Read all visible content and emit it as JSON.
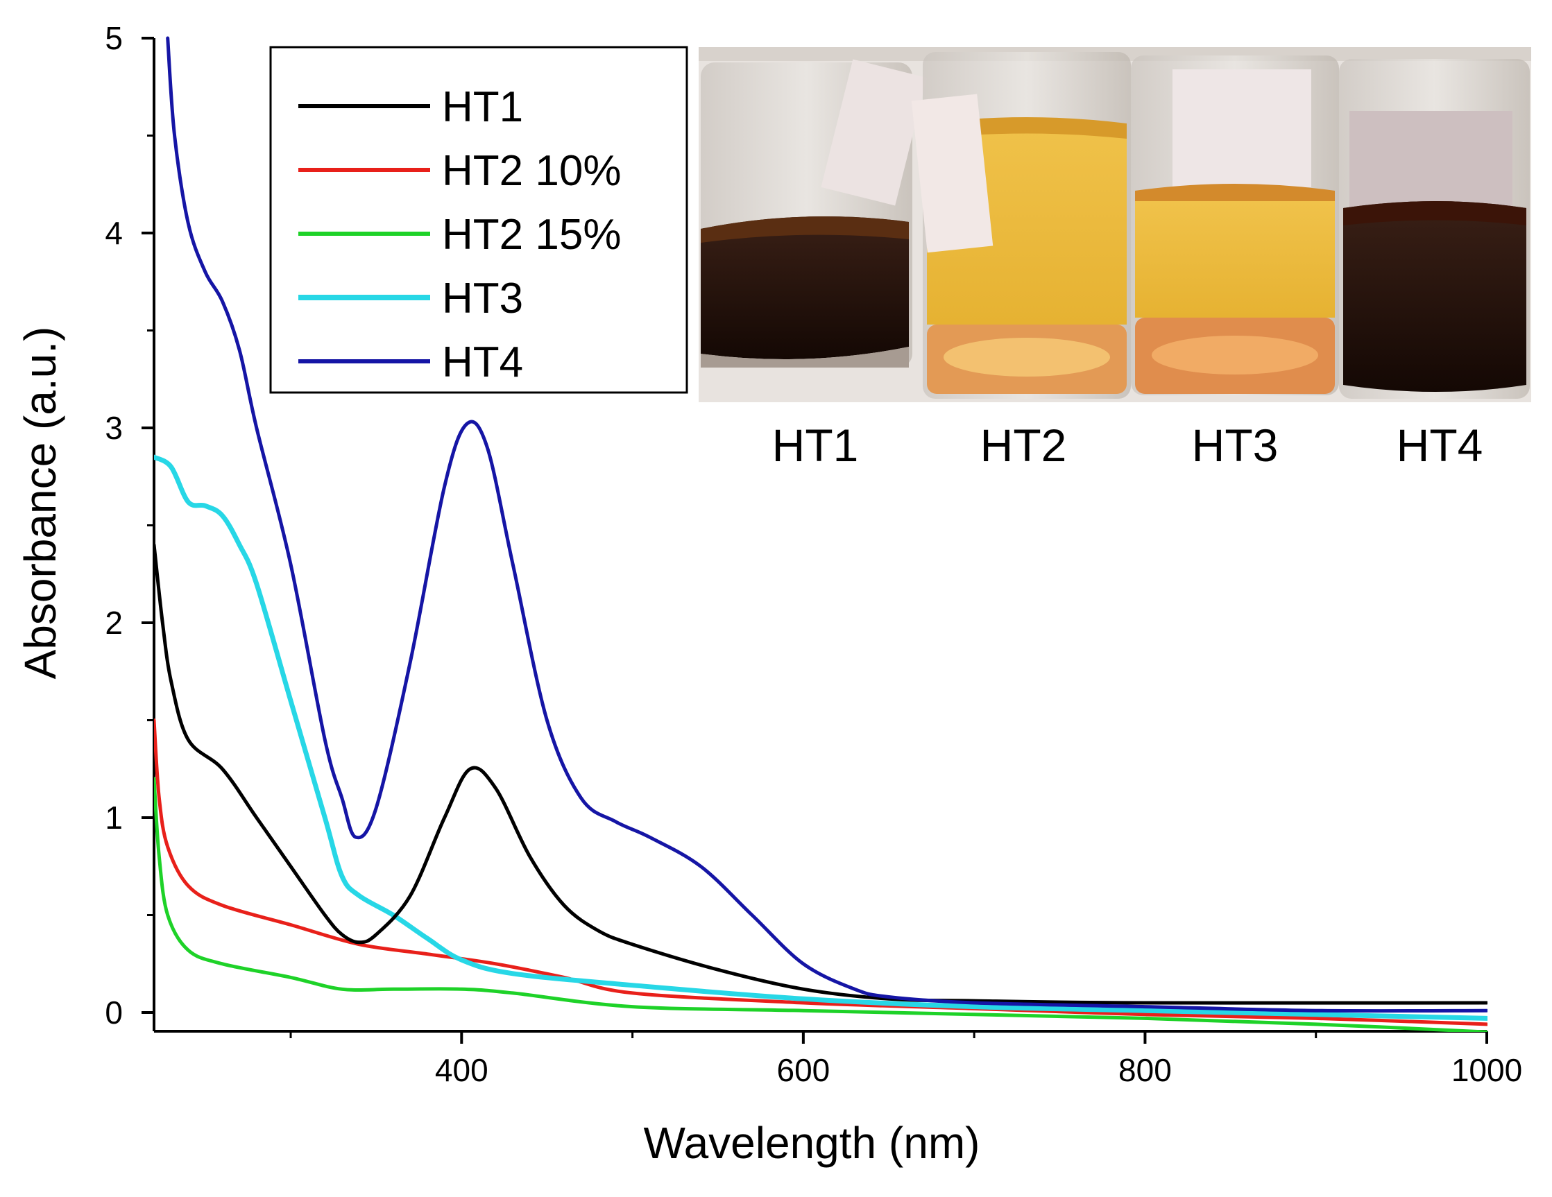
{
  "chart_data": {
    "type": "line",
    "title": "",
    "xlabel": "Wavelength (nm)",
    "ylabel": "Absorbance (a.u.)",
    "xlim": [
      220,
      1000
    ],
    "ylim": [
      -0.1,
      5
    ],
    "x_ticks": [
      400,
      600,
      800,
      1000
    ],
    "x_minor_ticks": [
      300,
      500,
      700,
      900
    ],
    "y_ticks": [
      0,
      1,
      2,
      3,
      4,
      5
    ],
    "y_minor_ticks": [
      0.5,
      1.5,
      2.5,
      3.5,
      4.5
    ],
    "legend_position": "top-left",
    "series": [
      {
        "name": "HT1",
        "color": "#000000",
        "points": [
          [
            220,
            2.4
          ],
          [
            225,
            2.0
          ],
          [
            230,
            1.7
          ],
          [
            240,
            1.4
          ],
          [
            260,
            1.25
          ],
          [
            280,
            1.0
          ],
          [
            300,
            0.75
          ],
          [
            320,
            0.5
          ],
          [
            330,
            0.4
          ],
          [
            340,
            0.36
          ],
          [
            350,
            0.4
          ],
          [
            370,
            0.6
          ],
          [
            390,
            1.0
          ],
          [
            405,
            1.25
          ],
          [
            420,
            1.15
          ],
          [
            440,
            0.8
          ],
          [
            460,
            0.55
          ],
          [
            480,
            0.42
          ],
          [
            500,
            0.35
          ],
          [
            550,
            0.22
          ],
          [
            600,
            0.12
          ],
          [
            650,
            0.07
          ],
          [
            700,
            0.06
          ],
          [
            800,
            0.05
          ],
          [
            1000,
            0.05
          ]
        ]
      },
      {
        "name": "HT2 10%",
        "color": "#e8201a",
        "points": [
          [
            220,
            1.5
          ],
          [
            223,
            1.1
          ],
          [
            228,
            0.85
          ],
          [
            240,
            0.65
          ],
          [
            260,
            0.55
          ],
          [
            300,
            0.45
          ],
          [
            340,
            0.35
          ],
          [
            380,
            0.3
          ],
          [
            420,
            0.25
          ],
          [
            460,
            0.18
          ],
          [
            500,
            0.1
          ],
          [
            600,
            0.05
          ],
          [
            700,
            0.02
          ],
          [
            800,
            -0.01
          ],
          [
            900,
            -0.03
          ],
          [
            1000,
            -0.06
          ]
        ]
      },
      {
        "name": "HT2 15%",
        "color": "#1ed228",
        "points": [
          [
            220,
            1.2
          ],
          [
            223,
            0.8
          ],
          [
            228,
            0.5
          ],
          [
            240,
            0.32
          ],
          [
            260,
            0.25
          ],
          [
            300,
            0.18
          ],
          [
            330,
            0.12
          ],
          [
            360,
            0.12
          ],
          [
            400,
            0.12
          ],
          [
            430,
            0.1
          ],
          [
            500,
            0.03
          ],
          [
            600,
            0.01
          ],
          [
            700,
            -0.01
          ],
          [
            800,
            -0.03
          ],
          [
            900,
            -0.06
          ],
          [
            1000,
            -0.1
          ]
        ]
      },
      {
        "name": "HT3",
        "color": "#27d7e6",
        "points": [
          [
            220,
            2.85
          ],
          [
            230,
            2.8
          ],
          [
            240,
            2.62
          ],
          [
            250,
            2.6
          ],
          [
            260,
            2.55
          ],
          [
            270,
            2.4
          ],
          [
            280,
            2.2
          ],
          [
            300,
            1.6
          ],
          [
            320,
            1.0
          ],
          [
            330,
            0.7
          ],
          [
            340,
            0.6
          ],
          [
            360,
            0.5
          ],
          [
            380,
            0.38
          ],
          [
            400,
            0.27
          ],
          [
            430,
            0.2
          ],
          [
            500,
            0.14
          ],
          [
            600,
            0.07
          ],
          [
            700,
            0.03
          ],
          [
            800,
            0.01
          ],
          [
            900,
            -0.01
          ],
          [
            1000,
            -0.03
          ]
        ]
      },
      {
        "name": "HT4",
        "color": "#1515a5",
        "points": [
          [
            228,
            5.0
          ],
          [
            232,
            4.5
          ],
          [
            240,
            4.05
          ],
          [
            250,
            3.8
          ],
          [
            260,
            3.65
          ],
          [
            270,
            3.4
          ],
          [
            280,
            3.0
          ],
          [
            300,
            2.3
          ],
          [
            320,
            1.4
          ],
          [
            330,
            1.1
          ],
          [
            338,
            0.9
          ],
          [
            350,
            1.05
          ],
          [
            370,
            1.8
          ],
          [
            390,
            2.7
          ],
          [
            403,
            3.02
          ],
          [
            415,
            2.9
          ],
          [
            430,
            2.3
          ],
          [
            450,
            1.5
          ],
          [
            470,
            1.1
          ],
          [
            490,
            0.98
          ],
          [
            510,
            0.9
          ],
          [
            540,
            0.75
          ],
          [
            570,
            0.5
          ],
          [
            600,
            0.25
          ],
          [
            630,
            0.12
          ],
          [
            650,
            0.08
          ],
          [
            700,
            0.05
          ],
          [
            800,
            0.03
          ],
          [
            900,
            0.01
          ],
          [
            1000,
            0.01
          ]
        ]
      }
    ]
  },
  "inset": {
    "description_labels": [
      "HT1",
      "HT2",
      "HT3",
      "HT4"
    ]
  }
}
